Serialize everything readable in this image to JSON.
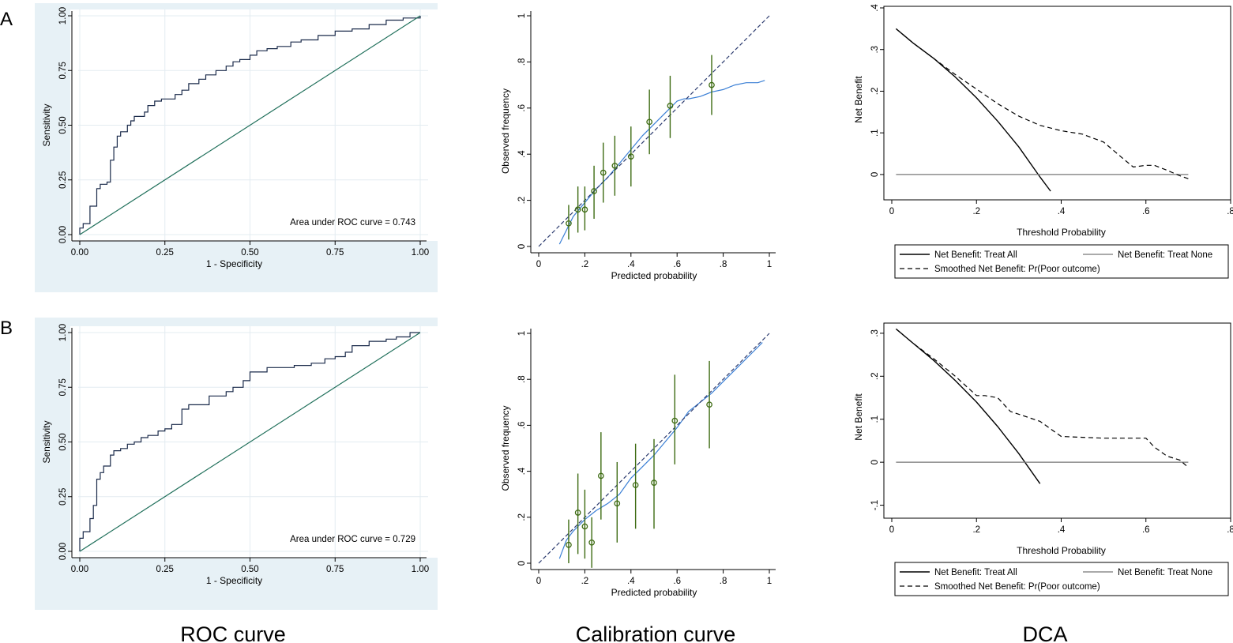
{
  "panel_labels": [
    "A",
    "B"
  ],
  "captions": {
    "roc": "ROC curve",
    "calibration": "Calibration curve",
    "dca": "DCA"
  },
  "colors": {
    "panel_bg": "#e7f1f6",
    "roc_line": "#1a2a4a",
    "diag_line": "#1f6f5a",
    "calib_line": "#3a7fd5",
    "ci_bar": "#3d6b12",
    "ref_dash": "#2b3a6e"
  },
  "chart_data": [
    {
      "id": "roc_A",
      "type": "line",
      "xlabel": "1 - Specificity",
      "ylabel": "Sensitivity",
      "xlim": [
        0,
        1
      ],
      "ylim": [
        0,
        1
      ],
      "xticks": [
        "0.00",
        "0.25",
        "0.50",
        "0.75",
        "1.00"
      ],
      "yticks": [
        "0.00",
        "0.25",
        "0.50",
        "0.75",
        "1.00"
      ],
      "annotation": "Area under ROC curve = 0.743",
      "series": [
        {
          "name": "ROC",
          "x": [
            0,
            0,
            0.01,
            0.01,
            0.03,
            0.03,
            0.05,
            0.05,
            0.06,
            0.08,
            0.09,
            0.1,
            0.11,
            0.12,
            0.14,
            0.15,
            0.16,
            0.19,
            0.2,
            0.22,
            0.24,
            0.25,
            0.28,
            0.3,
            0.32,
            0.35,
            0.37,
            0.4,
            0.43,
            0.45,
            0.47,
            0.5,
            0.52,
            0.55,
            0.58,
            0.62,
            0.65,
            0.7,
            0.75,
            0.8,
            0.85,
            0.9,
            0.95,
            1
          ],
          "y": [
            0,
            0.03,
            0.03,
            0.05,
            0.06,
            0.13,
            0.15,
            0.21,
            0.23,
            0.24,
            0.34,
            0.4,
            0.45,
            0.47,
            0.5,
            0.52,
            0.54,
            0.56,
            0.59,
            0.61,
            0.62,
            0.62,
            0.64,
            0.66,
            0.69,
            0.71,
            0.73,
            0.75,
            0.77,
            0.79,
            0.8,
            0.82,
            0.84,
            0.85,
            0.86,
            0.88,
            0.89,
            0.91,
            0.93,
            0.94,
            0.96,
            0.98,
            0.99,
            1
          ]
        },
        {
          "name": "Reference",
          "x": [
            0,
            1
          ],
          "y": [
            0,
            1
          ]
        }
      ]
    },
    {
      "id": "cal_A",
      "type": "scatter",
      "xlabel": "Predicted probability",
      "ylabel": "Observed frequency",
      "xlim": [
        0,
        1
      ],
      "ylim": [
        0,
        1
      ],
      "xticks": [
        "0",
        ".2",
        ".4",
        ".6",
        ".8",
        "1"
      ],
      "yticks": [
        "0",
        ".2",
        ".4",
        ".6",
        ".8",
        "1"
      ],
      "points": {
        "x": [
          0.13,
          0.17,
          0.2,
          0.24,
          0.28,
          0.33,
          0.4,
          0.48,
          0.57,
          0.75
        ],
        "y": [
          0.1,
          0.16,
          0.16,
          0.24,
          0.32,
          0.35,
          0.39,
          0.54,
          0.61,
          0.7
        ],
        "lo": [
          0.03,
          0.06,
          0.07,
          0.12,
          0.19,
          0.22,
          0.26,
          0.4,
          0.47,
          0.57
        ],
        "hi": [
          0.18,
          0.26,
          0.26,
          0.35,
          0.45,
          0.48,
          0.52,
          0.68,
          0.74,
          0.83
        ]
      },
      "series": [
        {
          "name": "Smoothed",
          "x": [
            0.09,
            0.12,
            0.15,
            0.2,
            0.25,
            0.3,
            0.35,
            0.4,
            0.45,
            0.5,
            0.55,
            0.6,
            0.63,
            0.65,
            0.7,
            0.75,
            0.8,
            0.85,
            0.9,
            0.95,
            0.98
          ],
          "y": [
            0.01,
            0.07,
            0.13,
            0.19,
            0.25,
            0.3,
            0.36,
            0.42,
            0.48,
            0.53,
            0.58,
            0.63,
            0.64,
            0.64,
            0.65,
            0.67,
            0.68,
            0.7,
            0.71,
            0.71,
            0.72
          ]
        },
        {
          "name": "Reference",
          "x": [
            0,
            1
          ],
          "y": [
            0,
            1
          ]
        }
      ]
    },
    {
      "id": "dca_A",
      "type": "line",
      "xlabel": "Threshold Probability",
      "ylabel": "Net Benefit",
      "xlim": [
        0,
        0.8
      ],
      "ylim": [
        -0.04,
        0.4
      ],
      "xticks": [
        "0",
        ".2",
        ".4",
        ".6",
        ".8"
      ],
      "yticks": [
        "0",
        ".1",
        ".2",
        ".3",
        ".4"
      ],
      "legend": [
        "Net Benefit: Treat All",
        "Net Benefit: Treat None",
        "Smoothed Net Benefit: Pr(Poor outcome)"
      ],
      "series": [
        {
          "name": "Net Benefit: Treat All",
          "x": [
            0.01,
            0.05,
            0.1,
            0.15,
            0.2,
            0.25,
            0.3,
            0.35,
            0.375
          ],
          "y": [
            0.35,
            0.316,
            0.278,
            0.234,
            0.184,
            0.128,
            0.066,
            -0.006,
            -0.04
          ]
        },
        {
          "name": "Net Benefit: Treat None",
          "x": [
            0.01,
            0.7
          ],
          "y": [
            0,
            0
          ]
        },
        {
          "name": "Smoothed Net Benefit: Pr(Poor outcome)",
          "x": [
            0.01,
            0.05,
            0.1,
            0.15,
            0.2,
            0.25,
            0.3,
            0.35,
            0.4,
            0.45,
            0.5,
            0.55,
            0.57,
            0.6,
            0.62,
            0.65,
            0.68,
            0.7
          ],
          "y": [
            0.35,
            0.316,
            0.278,
            0.24,
            0.205,
            0.17,
            0.14,
            0.118,
            0.105,
            0.097,
            0.078,
            0.035,
            0.018,
            0.022,
            0.022,
            0.01,
            -0.003,
            -0.01
          ]
        }
      ]
    },
    {
      "id": "roc_B",
      "type": "line",
      "xlabel": "1 - Specificity",
      "ylabel": "Sensitivity",
      "xlim": [
        0,
        1
      ],
      "ylim": [
        0,
        1
      ],
      "xticks": [
        "0.00",
        "0.25",
        "0.50",
        "0.75",
        "1.00"
      ],
      "yticks": [
        "0.00",
        "0.25",
        "0.50",
        "0.75",
        "1.00"
      ],
      "annotation": "Area under ROC curve = 0.729",
      "series": [
        {
          "name": "ROC",
          "x": [
            0,
            0,
            0.01,
            0.01,
            0.03,
            0.03,
            0.04,
            0.05,
            0.06,
            0.07,
            0.09,
            0.1,
            0.12,
            0.14,
            0.16,
            0.18,
            0.2,
            0.23,
            0.25,
            0.27,
            0.3,
            0.32,
            0.35,
            0.38,
            0.4,
            0.43,
            0.45,
            0.48,
            0.5,
            0.53,
            0.55,
            0.6,
            0.63,
            0.68,
            0.72,
            0.75,
            0.78,
            0.8,
            0.85,
            0.9,
            0.93,
            0.97,
            1
          ],
          "y": [
            0,
            0.06,
            0.06,
            0.09,
            0.09,
            0.15,
            0.21,
            0.33,
            0.36,
            0.39,
            0.44,
            0.46,
            0.47,
            0.49,
            0.5,
            0.52,
            0.53,
            0.55,
            0.56,
            0.58,
            0.65,
            0.67,
            0.67,
            0.71,
            0.71,
            0.73,
            0.75,
            0.78,
            0.82,
            0.82,
            0.84,
            0.84,
            0.85,
            0.86,
            0.88,
            0.89,
            0.91,
            0.94,
            0.96,
            0.97,
            0.98,
            1,
            1
          ]
        },
        {
          "name": "Reference",
          "x": [
            0,
            1
          ],
          "y": [
            0,
            1
          ]
        }
      ]
    },
    {
      "id": "cal_B",
      "type": "scatter",
      "xlabel": "Predicted probability",
      "ylabel": "Observed frequency",
      "xlim": [
        0,
        1
      ],
      "ylim": [
        0,
        1
      ],
      "xticks": [
        "0",
        ".2",
        ".4",
        ".6",
        ".8",
        "1"
      ],
      "yticks": [
        "0",
        ".2",
        ".4",
        ".6",
        ".8",
        "1"
      ],
      "points": {
        "x": [
          0.13,
          0.17,
          0.2,
          0.23,
          0.27,
          0.34,
          0.42,
          0.5,
          0.59,
          0.74
        ],
        "y": [
          0.08,
          0.22,
          0.16,
          0.09,
          0.38,
          0.26,
          0.34,
          0.35,
          0.62,
          0.69
        ],
        "lo": [
          0,
          0.04,
          0.02,
          -0.02,
          0.19,
          0.09,
          0.15,
          0.15,
          0.43,
          0.5
        ],
        "hi": [
          0.19,
          0.39,
          0.32,
          0.2,
          0.57,
          0.44,
          0.52,
          0.54,
          0.82,
          0.88
        ]
      },
      "series": [
        {
          "name": "Smoothed",
          "x": [
            0.09,
            0.12,
            0.15,
            0.2,
            0.25,
            0.3,
            0.35,
            0.4,
            0.45,
            0.5,
            0.55,
            0.6,
            0.65,
            0.7,
            0.75,
            0.8,
            0.85,
            0.9,
            0.95,
            0.97
          ],
          "y": [
            0.02,
            0.1,
            0.14,
            0.19,
            0.23,
            0.26,
            0.3,
            0.37,
            0.42,
            0.47,
            0.53,
            0.59,
            0.66,
            0.7,
            0.74,
            0.79,
            0.84,
            0.89,
            0.94,
            0.96
          ]
        },
        {
          "name": "Reference",
          "x": [
            0,
            1
          ],
          "y": [
            0,
            1
          ]
        }
      ]
    },
    {
      "id": "dca_B",
      "type": "line",
      "xlabel": "Threshold Probability",
      "ylabel": "Net Benefit",
      "xlim": [
        0,
        0.8
      ],
      "ylim": [
        -0.11,
        0.32
      ],
      "xticks": [
        "0",
        ".2",
        ".4",
        ".6",
        ".8"
      ],
      "yticks": [
        "-.1",
        "0",
        ".1",
        ".2",
        ".3"
      ],
      "legend": [
        "Net Benefit: Treat All",
        "Net Benefit: Treat None",
        "Smoothed Net Benefit: Pr(Poor outcome)"
      ],
      "series": [
        {
          "name": "Net Benefit: Treat All",
          "x": [
            0.01,
            0.05,
            0.1,
            0.15,
            0.2,
            0.25,
            0.3,
            0.35
          ],
          "y": [
            0.31,
            0.277,
            0.236,
            0.19,
            0.14,
            0.083,
            0.02,
            -0.05
          ]
        },
        {
          "name": "Net Benefit: Treat None",
          "x": [
            0.01,
            0.7
          ],
          "y": [
            0,
            0
          ]
        },
        {
          "name": "Smoothed Net Benefit: Pr(Poor outcome)",
          "x": [
            0.01,
            0.05,
            0.1,
            0.15,
            0.2,
            0.22,
            0.25,
            0.28,
            0.32,
            0.35,
            0.4,
            0.45,
            0.5,
            0.55,
            0.6,
            0.62,
            0.65,
            0.68,
            0.7
          ],
          "y": [
            0.31,
            0.277,
            0.24,
            0.2,
            0.155,
            0.155,
            0.15,
            0.118,
            0.105,
            0.095,
            0.06,
            0.058,
            0.056,
            0.056,
            0.056,
            0.035,
            0.014,
            0.005,
            -0.012
          ]
        }
      ]
    }
  ]
}
